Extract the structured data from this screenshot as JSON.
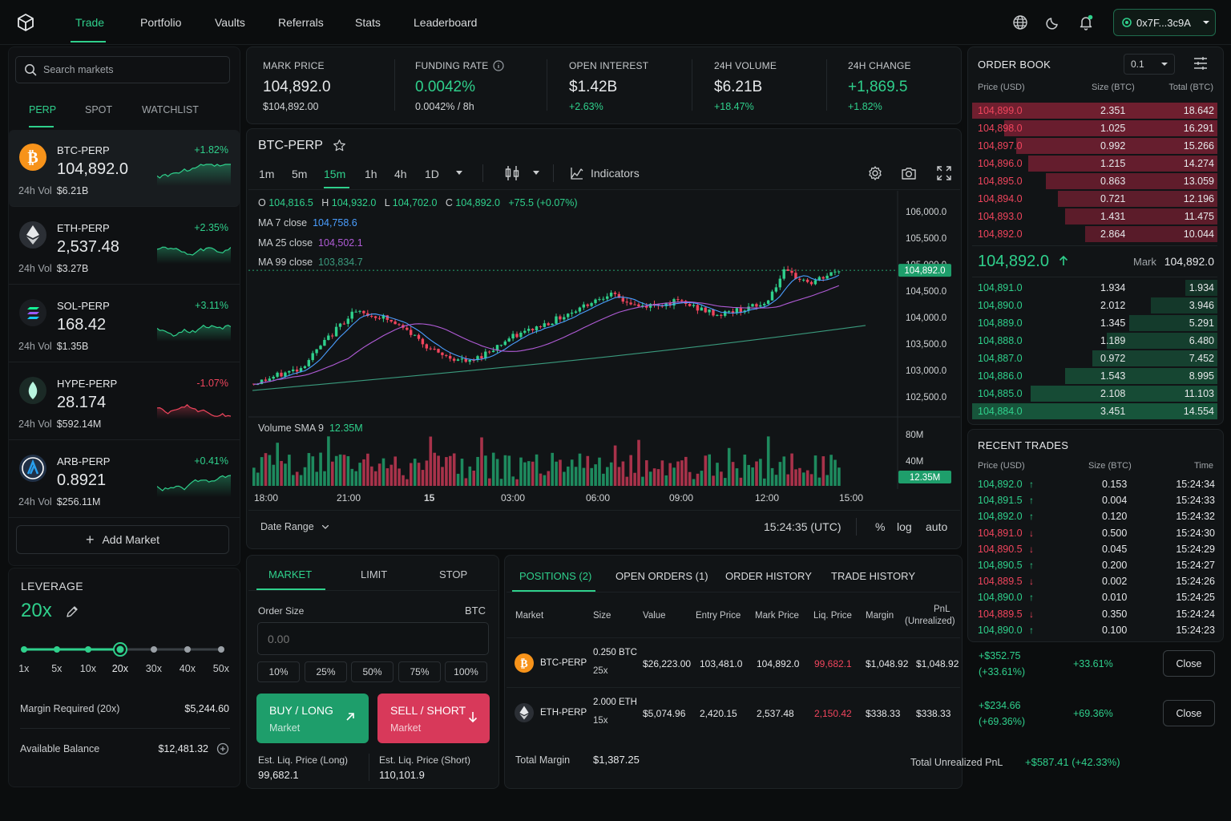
{
  "nav": {
    "items": [
      "Trade",
      "Portfolio",
      "Vaults",
      "Referrals",
      "Stats",
      "Leaderboard"
    ],
    "wallet": "0x7F...3c9A",
    "icons": [
      "globe-icon",
      "moon-icon",
      "bell-icon"
    ]
  },
  "sidebar": {
    "search_placeholder": "Search markets",
    "tabs": [
      "PERP",
      "SPOT",
      "WATCHLIST"
    ],
    "vol_label": "24h Vol",
    "markets": [
      {
        "symbol": "BTC-PERP",
        "price": "104,892.0",
        "change": "+1.82%",
        "vol": "$6.21B",
        "up": true,
        "color": "#f7931a",
        "icon": "bitcoin-icon"
      },
      {
        "symbol": "ETH-PERP",
        "price": "2,537.48",
        "change": "+2.35%",
        "vol": "$3.27B",
        "up": true,
        "color": "#2b2f35",
        "icon": "ethereum-icon"
      },
      {
        "symbol": "SOL-PERP",
        "price": "168.42",
        "change": "+3.11%",
        "vol": "$1.35B",
        "up": true,
        "color": "#1b1e22",
        "icon": "solana-icon"
      },
      {
        "symbol": "HYPE-PERP",
        "price": "28.174",
        "change": "-1.07%",
        "vol": "$592.14M",
        "up": false,
        "color": "#1b2a26",
        "icon": "hype-icon"
      },
      {
        "symbol": "ARB-PERP",
        "price": "0.8921",
        "change": "+0.41%",
        "vol": "$256.11M",
        "up": true,
        "color": "#1d2a3a",
        "icon": "arbitrum-icon"
      }
    ],
    "add_market": "Add Market"
  },
  "leverage": {
    "title": "LEVERAGE",
    "value": "20x",
    "ticks": [
      "1x",
      "5x",
      "10x",
      "20x",
      "30x",
      "40x",
      "50x"
    ],
    "selected_index": 3,
    "margin_required_label": "Margin Required (20x)",
    "margin_required": "$5,244.60",
    "available_label": "Available Balance",
    "available": "$12,481.32"
  },
  "stats": [
    {
      "label": "MARK PRICE",
      "value": "104,892.0",
      "sub": "$104,892.00",
      "color": "#e6e8ea",
      "subcolor": "#d0d3d5"
    },
    {
      "label": "FUNDING RATE",
      "value": "0.0042%",
      "sub": "0.0042% / 8h",
      "color": "#2fd08c",
      "subcolor": "#d0d3d5"
    },
    {
      "label": "OPEN INTEREST",
      "value": "$1.42B",
      "sub": "+2.63%",
      "color": "#e6e8ea",
      "subcolor": "#2fd08c"
    },
    {
      "label": "24H VOLUME",
      "value": "$6.21B",
      "sub": "+18.47%",
      "color": "#e6e8ea",
      "subcolor": "#2fd08c"
    },
    {
      "label": "24H CHANGE",
      "value": "+1,869.5",
      "sub": "+1.82%",
      "color": "#2fd08c",
      "subcolor": "#2fd08c"
    }
  ],
  "chart": {
    "symbol": "BTC-PERP",
    "timeframes": [
      "1m",
      "5m",
      "15m",
      "1h",
      "4h",
      "1D"
    ],
    "active_timeframe": "15m",
    "indicators_label": "Indicators",
    "ohlc": {
      "o_label": "O",
      "o": "104,816.5",
      "h_label": "H",
      "h": "104,932.0",
      "l_label": "L",
      "l": "104,702.0",
      "c_label": "C",
      "c": "104,892.0",
      "chg": "+75.5 (+0.07%)"
    },
    "ma": [
      {
        "label": "MA 7 close",
        "value": "104,758.6",
        "color": "#4a9eff"
      },
      {
        "label": "MA 25 close",
        "value": "104,502.1",
        "color": "#b05bd6"
      },
      {
        "label": "MA 99 close",
        "value": "103,834.7",
        "color": "#3a9a7d"
      }
    ],
    "price_axis": [
      "106,000.0",
      "105,500.0",
      "105,000.0",
      "104,500.0",
      "104,000.0",
      "103,500.0",
      "103,000.0",
      "102,500.0"
    ],
    "last_price": "104,892.0",
    "volume_label": "Volume SMA 9",
    "volume_sma": "12.35M",
    "volume_axis": [
      "80M",
      "40M"
    ],
    "time_axis": [
      "18:00",
      "21:00",
      "15",
      "03:00",
      "06:00",
      "09:00",
      "12:00",
      "15:00"
    ],
    "date_range": "Date Range",
    "clock": "15:24:35 (UTC)",
    "scale_opts": [
      "%",
      "log",
      "auto"
    ]
  },
  "orderbook": {
    "title": "ORDER BOOK",
    "tick": "0.1",
    "headers": [
      "Price (USD)",
      "Size (BTC)",
      "Total (BTC)"
    ],
    "asks": [
      {
        "price": "104,899.0",
        "size": "2.351",
        "total": "18.642",
        "depth": 1.0
      },
      {
        "price": "104,898.0",
        "size": "1.025",
        "total": "16.291",
        "depth": 0.87
      },
      {
        "price": "104,897.0",
        "size": "0.992",
        "total": "15.266",
        "depth": 0.82
      },
      {
        "price": "104,896.0",
        "size": "1.215",
        "total": "14.274",
        "depth": 0.77
      },
      {
        "price": "104,895.0",
        "size": "0.863",
        "total": "13.059",
        "depth": 0.7
      },
      {
        "price": "104,894.0",
        "size": "0.721",
        "total": "12.196",
        "depth": 0.65
      },
      {
        "price": "104,893.0",
        "size": "1.431",
        "total": "11.475",
        "depth": 0.62
      },
      {
        "price": "104,892.0",
        "size": "2.864",
        "total": "10.044",
        "depth": 0.54
      }
    ],
    "mid_price": "104,892.0",
    "mark_label": "Mark",
    "mark": "104,892.0",
    "bids": [
      {
        "price": "104,891.0",
        "size": "1.934",
        "total": "1.934",
        "depth": 0.13
      },
      {
        "price": "104,890.0",
        "size": "2.012",
        "total": "3.946",
        "depth": 0.27
      },
      {
        "price": "104,889.0",
        "size": "1.345",
        "total": "5.291",
        "depth": 0.36
      },
      {
        "price": "104,888.0",
        "size": "1.189",
        "total": "6.480",
        "depth": 0.45
      },
      {
        "price": "104,887.0",
        "size": "0.972",
        "total": "7.452",
        "depth": 0.51
      },
      {
        "price": "104,886.0",
        "size": "1.543",
        "total": "8.995",
        "depth": 0.62
      },
      {
        "price": "104,885.0",
        "size": "2.108",
        "total": "11.103",
        "depth": 0.76
      },
      {
        "price": "104,884.0",
        "size": "3.451",
        "total": "14.554",
        "depth": 1.0
      }
    ]
  },
  "recent_trades": {
    "title": "RECENT TRADES",
    "headers": [
      "Price (USD)",
      "Size (BTC)",
      "Time"
    ],
    "rows": [
      {
        "price": "104,892.0",
        "size": "0.153",
        "time": "15:24:34",
        "up": true
      },
      {
        "price": "104,891.5",
        "size": "0.004",
        "time": "15:24:33",
        "up": true
      },
      {
        "price": "104,892.0",
        "size": "0.120",
        "time": "15:24:32",
        "up": true
      },
      {
        "price": "104,891.0",
        "size": "0.500",
        "time": "15:24:30",
        "up": false
      },
      {
        "price": "104,890.5",
        "size": "0.045",
        "time": "15:24:29",
        "up": false
      },
      {
        "price": "104,890.5",
        "size": "0.200",
        "time": "15:24:27",
        "up": true
      },
      {
        "price": "104,889.5",
        "size": "0.002",
        "time": "15:24:26",
        "up": false
      },
      {
        "price": "104,890.0",
        "size": "0.010",
        "time": "15:24:25",
        "up": true
      },
      {
        "price": "104,889.5",
        "size": "0.350",
        "time": "15:24:24",
        "up": false
      },
      {
        "price": "104,890.0",
        "size": "0.100",
        "time": "15:24:23",
        "up": true
      }
    ]
  },
  "order_form": {
    "tabs": [
      "MARKET",
      "LIMIT",
      "STOP"
    ],
    "size_label": "Order Size",
    "size_unit": "BTC",
    "size_placeholder": "0.00",
    "percents": [
      "10%",
      "25%",
      "50%",
      "75%",
      "100%"
    ],
    "buy": {
      "title": "BUY / LONG",
      "sub": "Market"
    },
    "sell": {
      "title": "SELL / SHORT",
      "sub": "Market"
    },
    "liq_long_label": "Est. Liq. Price (Long)",
    "liq_long": "99,682.1",
    "liq_short_label": "Est. Liq. Price (Short)",
    "liq_short": "110,101.9"
  },
  "positions": {
    "tabs": [
      "POSITIONS (2)",
      "OPEN ORDERS (1)",
      "ORDER HISTORY",
      "TRADE HISTORY"
    ],
    "headers": [
      "Market",
      "Size",
      "Value",
      "Entry Price",
      "Mark Price",
      "Liq. Price",
      "Margin",
      "PnL",
      "(Unrealized)"
    ],
    "rows": [
      {
        "market": "BTC-PERP",
        "size": "0.250 BTC",
        "lev": "25x",
        "value": "$26,223.00",
        "entry": "103,481.0",
        "mark": "104,892.0",
        "liq": "99,682.1",
        "margin": "$1,048.92",
        "margin2": "$1,048.92",
        "pnl": "+$352.75",
        "pnl_pct": "(+33.61%)",
        "roe": "+33.61%",
        "close": "Close",
        "icon": "bitcoin-icon"
      },
      {
        "market": "ETH-PERP",
        "size": "2.000 ETH",
        "lev": "15x",
        "value": "$5,074.96",
        "entry": "2,420.15",
        "mark": "2,537.48",
        "liq": "2,150.42",
        "margin": "$338.33",
        "margin2": "$338.33",
        "pnl": "+$234.66",
        "pnl_pct": "(+69.36%)",
        "roe": "+69.36%",
        "close": "Close",
        "icon": "ethereum-icon"
      }
    ],
    "total_margin_label": "Total Margin",
    "total_margin": "$1,387.25",
    "total_pnl_label": "Total Unrealized PnL",
    "total_pnl": "+$587.41 (+42.33%)"
  },
  "colors": {
    "up": "#2fd08c",
    "down": "#f0455d",
    "accent": "#2fd08c",
    "bg": "#0b0d0e",
    "panel": "#111416"
  }
}
